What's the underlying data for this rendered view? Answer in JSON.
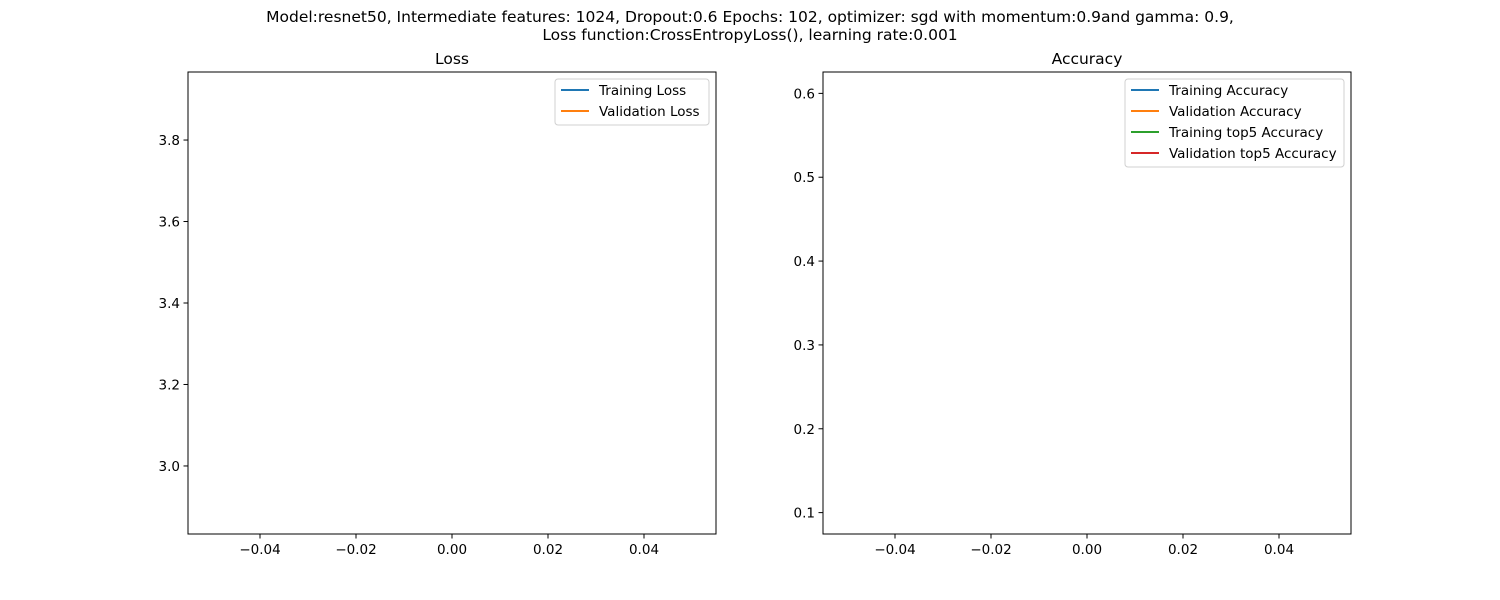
{
  "figure": {
    "suptitle_line1": "Model:resnet50, Intermediate features: 1024, Dropout:0.6 Epochs: 102, optimizer: sgd with momentum:0.9and gamma: 0.9,",
    "suptitle_line2": "Loss function:CrossEntropyLoss(), learning rate:0.001"
  },
  "chart_data": [
    {
      "type": "line",
      "title": "Loss",
      "xlabel": "",
      "ylabel": "",
      "xlim": [
        -0.055,
        0.055
      ],
      "ylim": [
        2.833,
        3.967
      ],
      "xticks": [
        -0.04,
        -0.02,
        0.0,
        0.02,
        0.04
      ],
      "xtick_labels": [
        "−0.04",
        "−0.02",
        "0.00",
        "0.02",
        "0.04"
      ],
      "yticks": [
        3.0,
        3.2,
        3.4,
        3.6,
        3.8
      ],
      "ytick_labels": [
        "3.0",
        "3.2",
        "3.4",
        "3.6",
        "3.8"
      ],
      "grid": false,
      "legend_position": "top-right",
      "series": [
        {
          "name": "Training Loss",
          "color": "#1f77b4",
          "x": [],
          "y": []
        },
        {
          "name": "Validation Loss",
          "color": "#ff7f0e",
          "x": [],
          "y": []
        }
      ]
    },
    {
      "type": "line",
      "title": "Accuracy",
      "xlabel": "",
      "ylabel": "",
      "xlim": [
        -0.055,
        0.055
      ],
      "ylim": [
        0.0745,
        0.6255
      ],
      "xticks": [
        -0.04,
        -0.02,
        0.0,
        0.02,
        0.04
      ],
      "xtick_labels": [
        "−0.04",
        "−0.02",
        "0.00",
        "0.02",
        "0.04"
      ],
      "yticks": [
        0.1,
        0.2,
        0.3,
        0.4,
        0.5,
        0.6
      ],
      "ytick_labels": [
        "0.1",
        "0.2",
        "0.3",
        "0.4",
        "0.5",
        "0.6"
      ],
      "grid": false,
      "legend_position": "top-right",
      "series": [
        {
          "name": "Training Accuracy",
          "color": "#1f77b4",
          "x": [],
          "y": []
        },
        {
          "name": "Validation Accuracy",
          "color": "#ff7f0e",
          "x": [],
          "y": []
        },
        {
          "name": "Training top5 Accuracy",
          "color": "#2ca02c",
          "x": [],
          "y": []
        },
        {
          "name": "Validation top5 Accuracy",
          "color": "#d62728",
          "x": [],
          "y": []
        }
      ]
    }
  ]
}
